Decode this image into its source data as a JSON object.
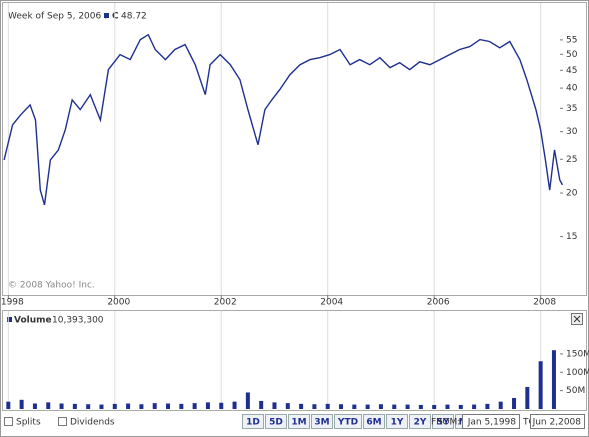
{
  "chart_data": [
    {
      "type": "line",
      "hover_date": "Week of Sep 5, 2006 :",
      "hover_value": 48.72,
      "annotation": "© 2008 Yahoo! Inc.",
      "log_scale": true,
      "grid": true,
      "x": [
        1997.92,
        1998.08,
        1998.23,
        1998.41,
        1998.51,
        1998.6,
        1998.68,
        1998.79,
        1998.94,
        1999.07,
        1999.2,
        1999.35,
        1999.54,
        1999.73,
        1999.88,
        2000.1,
        2000.29,
        2000.48,
        2000.63,
        2000.76,
        2000.95,
        2001.13,
        2001.32,
        2001.51,
        2001.7,
        2001.79,
        2001.98,
        2002.17,
        2002.35,
        2002.5,
        2002.69,
        2002.82,
        2002.95,
        2003.1,
        2003.29,
        2003.48,
        2003.67,
        2003.85,
        2004.04,
        2004.23,
        2004.42,
        2004.6,
        2004.79,
        2004.98,
        2005.17,
        2005.35,
        2005.54,
        2005.73,
        2005.92,
        2006.11,
        2006.29,
        2006.48,
        2006.67,
        2006.86,
        2007.04,
        2007.23,
        2007.42,
        2007.61,
        2007.74,
        2007.91,
        2008.0,
        2008.09,
        2008.17,
        2008.26,
        2008.36,
        2008.41
      ],
      "series": [
        {
          "name": "C",
          "color": "#1f2f8f",
          "values": [
            24.9,
            31.4,
            33.5,
            35.8,
            32.4,
            20.4,
            18.5,
            24.9,
            26.6,
            30.4,
            37.0,
            34.7,
            38.3,
            32.4,
            45.2,
            49.9,
            48.3,
            55.1,
            56.9,
            51.6,
            48.3,
            51.6,
            53.3,
            46.7,
            38.3,
            46.7,
            49.9,
            46.7,
            42.3,
            34.7,
            27.5,
            34.7,
            37.0,
            39.6,
            43.7,
            46.7,
            48.3,
            48.9,
            49.9,
            51.6,
            46.7,
            48.3,
            46.7,
            48.9,
            45.8,
            47.3,
            45.2,
            47.6,
            46.7,
            48.3,
            49.9,
            51.6,
            52.6,
            55.1,
            54.4,
            52.2,
            54.4,
            48.3,
            42.3,
            34.7,
            30.4,
            24.9,
            20.4,
            26.6,
            21.8,
            21.1
          ]
        }
      ],
      "xlim": [
        1997.9,
        2008.42
      ],
      "xticks": [
        1998,
        2000,
        2002,
        2004,
        2006,
        2008
      ],
      "ylim": [
        10.2,
        67
      ],
      "yticks": [
        15,
        20,
        25,
        30,
        35,
        40,
        45,
        50,
        55
      ]
    },
    {
      "type": "bar",
      "current_value": "10,393,300",
      "x": [
        1998.0,
        1998.25,
        1998.5,
        1998.75,
        1999.0,
        1999.25,
        1999.5,
        1999.75,
        2000.0,
        2000.25,
        2000.5,
        2000.75,
        2001.0,
        2001.25,
        2001.5,
        2001.75,
        2002.0,
        2002.25,
        2002.5,
        2002.75,
        2003.0,
        2003.25,
        2003.5,
        2003.75,
        2004.0,
        2004.25,
        2004.5,
        2004.75,
        2005.0,
        2005.25,
        2005.5,
        2005.75,
        2006.0,
        2006.25,
        2006.5,
        2006.75,
        2007.0,
        2007.25,
        2007.5,
        2007.75,
        2008.0,
        2008.25
      ],
      "series": [
        {
          "name": "Volume",
          "color": "#1f2f8f",
          "values": [
            20,
            25,
            15,
            18,
            15,
            14,
            13,
            12,
            14,
            15,
            13,
            16,
            15,
            14,
            16,
            18,
            17,
            20,
            45,
            22,
            18,
            16,
            14,
            13,
            14,
            13,
            12,
            12,
            13,
            12,
            12,
            11,
            11,
            12,
            11,
            12,
            14,
            20,
            30,
            60,
            130,
            160
          ]
        }
      ],
      "xlim": [
        1997.9,
        2008.42
      ],
      "ylim": [
        0,
        215
      ],
      "yticks": [
        {
          "value": 50,
          "label": "50M"
        },
        {
          "value": 100,
          "label": "100M"
        },
        {
          "value": 150,
          "label": "150M"
        }
      ]
    }
  ],
  "controls": {
    "checkboxes": [
      "Splits",
      "Dividends"
    ],
    "ranges": [
      "1D",
      "5D",
      "1M",
      "3M",
      "YTD",
      "6M",
      "1Y",
      "2Y",
      "5Y",
      "Max"
    ],
    "from_label": "FROM:",
    "from": "Jan 5,1998",
    "to_label": "TO:",
    "to": "Jun 2,2008"
  }
}
